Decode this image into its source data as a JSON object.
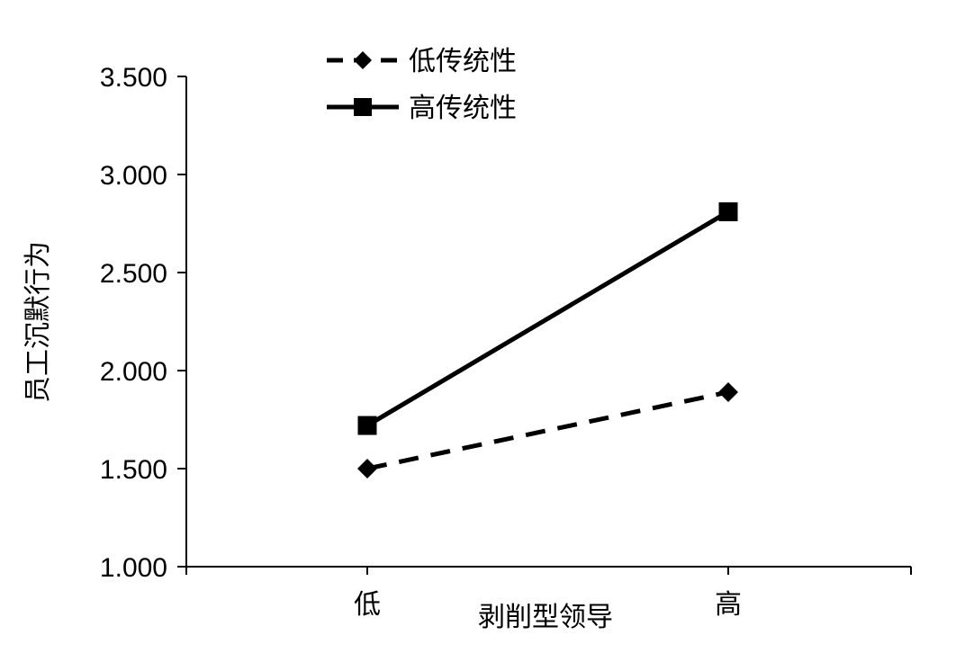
{
  "chart_data": {
    "type": "line",
    "categories": [
      "低",
      "高"
    ],
    "series": [
      {
        "name": "低传统性",
        "values": [
          1.5,
          1.89
        ],
        "line_style": "dashed",
        "marker": "diamond"
      },
      {
        "name": "高传统性",
        "values": [
          1.72,
          2.81
        ],
        "line_style": "solid",
        "marker": "square"
      }
    ],
    "xlabel": "剥削型领导",
    "ylabel": "员工沉默行为",
    "ylim": [
      1.0,
      3.5
    ],
    "yticks": [
      "1.000",
      "1.500",
      "2.000",
      "2.500",
      "3.000",
      "3.500"
    ],
    "grid": false,
    "legend_position": "top-left",
    "colors": {
      "line": "#000000",
      "background": "#ffffff"
    }
  }
}
